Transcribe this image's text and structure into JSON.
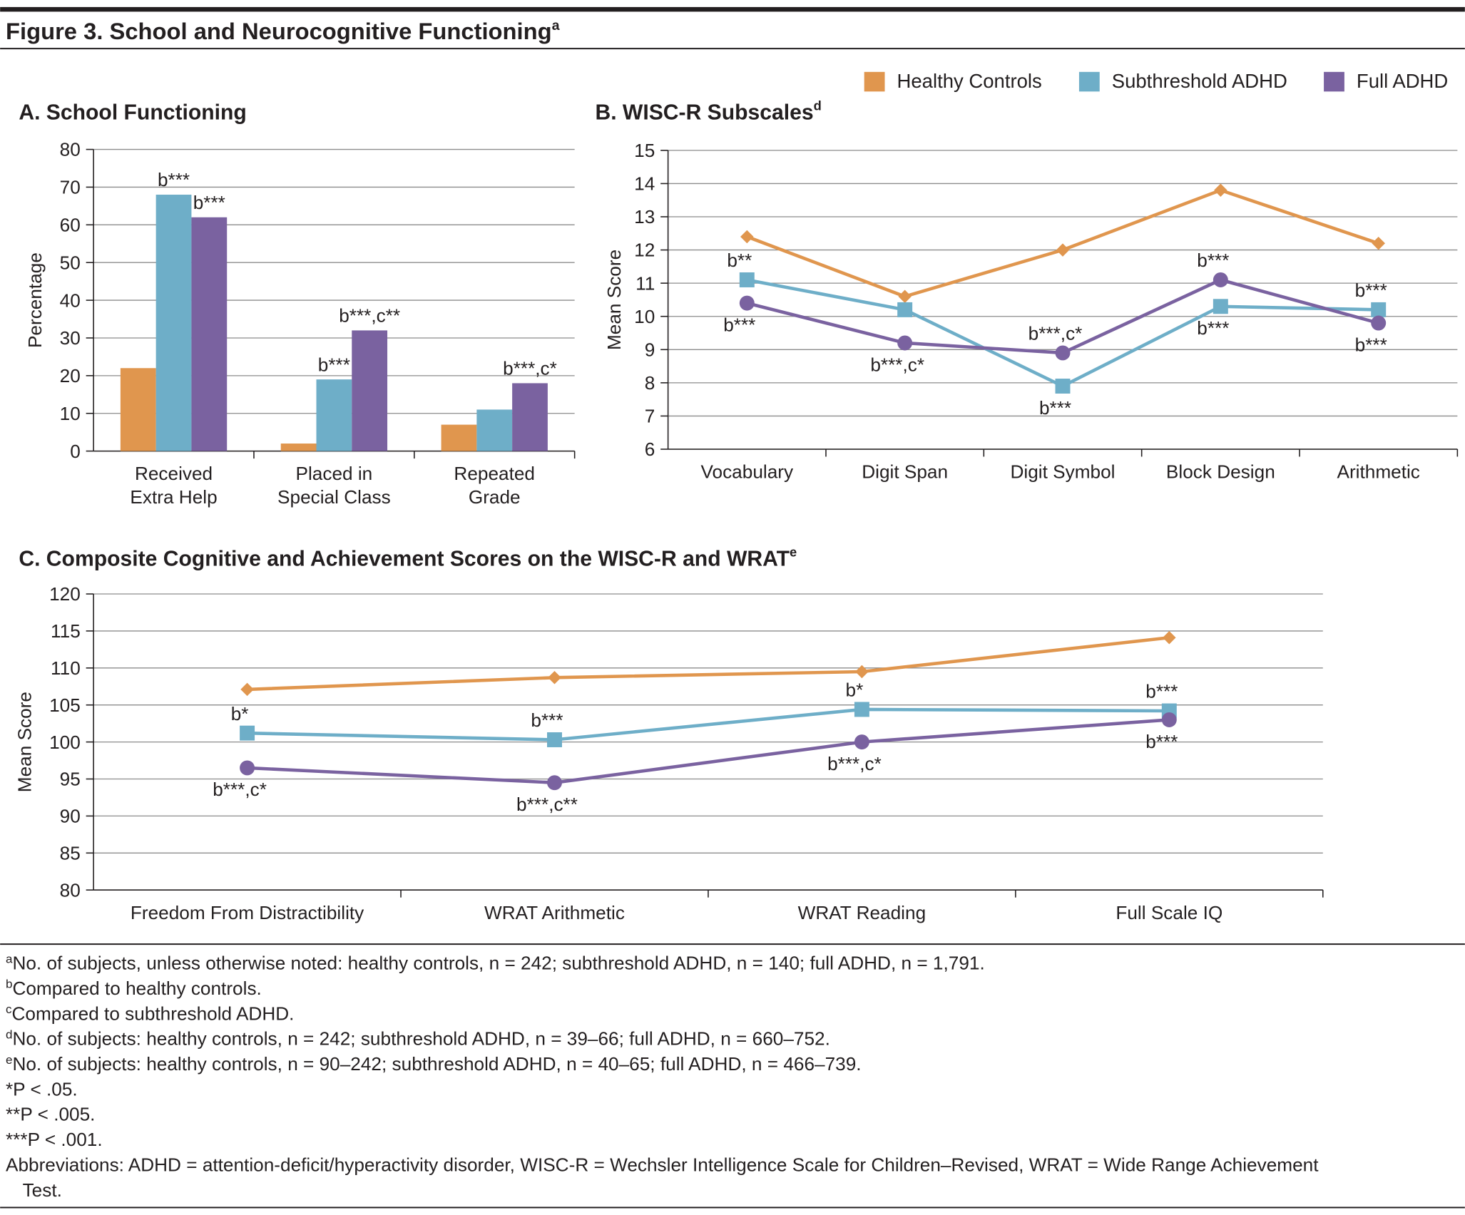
{
  "header": {
    "title": "Figure 3. School and Neurocognitive Functioning",
    "note": "a"
  },
  "chart_data": [
    {
      "type": "bar",
      "title": "A. School Functioning",
      "y_label": "Percentage",
      "categories": [
        [
          "Received",
          "Extra Help"
        ],
        [
          "Placed in",
          "Special Class"
        ],
        [
          "Repeated",
          "Grade"
        ]
      ],
      "series": [
        {
          "color": "#e0964e",
          "marker": "diamond",
          "values": [
            22,
            2,
            7
          ],
          "value_labels": [
            null,
            null,
            null
          ]
        },
        {
          "color": "#6eaec8",
          "marker": "square",
          "values": [
            68,
            19,
            11
          ],
          "value_labels": [
            "b***",
            "b***",
            null
          ]
        },
        {
          "color": "#7a62a0",
          "marker": "circle",
          "values": [
            62,
            32,
            18
          ],
          "value_labels": [
            "b***",
            "b***,c**",
            "b***,c*"
          ]
        }
      ],
      "ylim": [
        0,
        80
      ],
      "yticks": [
        0,
        10,
        20,
        30,
        40,
        50,
        60,
        70,
        80
      ],
      "grid": true
    },
    {
      "type": "line",
      "title": "B. WISC-R Subscales",
      "title_note": "d",
      "y_label": "Mean Score",
      "categories": [
        "Vocabulary",
        "Digit Span",
        "Digit Symbol",
        "Block Design",
        "Arithmetic"
      ],
      "series": [
        {
          "name": "Healthy Controls",
          "color": "#e0964e",
          "marker": "diamond",
          "values": [
            12.4,
            10.6,
            12.0,
            13.8,
            12.2
          ],
          "value_labels": [
            null,
            null,
            null,
            null,
            null
          ]
        },
        {
          "name": "Subthreshold ADHD",
          "color": "#6eaec8",
          "marker": "square",
          "values": [
            11.1,
            10.2,
            7.9,
            10.3,
            10.2
          ],
          "value_labels": [
            "b**",
            null,
            "b***",
            "b***",
            "b***"
          ]
        },
        {
          "name": "Full ADHD",
          "color": "#7a62a0",
          "marker": "circle",
          "values": [
            10.4,
            9.2,
            8.9,
            11.1,
            9.8
          ],
          "value_labels": [
            "b***",
            "b***,c*",
            "b***,c*",
            "b***",
            "b***"
          ]
        }
      ],
      "ylim": [
        6,
        15
      ],
      "yticks": [
        6,
        7,
        8,
        9,
        10,
        11,
        12,
        13,
        14,
        15
      ],
      "grid": true,
      "legend": "top-right"
    },
    {
      "type": "line",
      "title": "C. Composite Cognitive and Achievement Scores on the WISC-R and WRAT",
      "title_note": "e",
      "y_label": "Mean Score",
      "categories": [
        "Freedom From Distractibility",
        "WRAT Arithmetic",
        "WRAT Reading",
        "Full Scale IQ"
      ],
      "series": [
        {
          "color": "#e0964e",
          "marker": "diamond",
          "values": [
            107.1,
            108.7,
            109.5,
            114.1
          ],
          "value_labels": [
            null,
            null,
            null,
            null
          ]
        },
        {
          "color": "#6eaec8",
          "marker": "square",
          "values": [
            101.2,
            100.3,
            104.4,
            104.2
          ],
          "value_labels": [
            "b*",
            "b***",
            "b*",
            "b***"
          ]
        },
        {
          "color": "#7a62a0",
          "marker": "circle",
          "values": [
            96.5,
            94.5,
            100.0,
            103.0
          ],
          "value_labels": [
            "b***,c*",
            "b***,c**",
            "b***,c*",
            "b***"
          ]
        }
      ],
      "ylim": [
        80,
        120
      ],
      "yticks": [
        80,
        85,
        90,
        95,
        100,
        105,
        110,
        115,
        120
      ],
      "grid": true
    }
  ],
  "footnotes": [
    {
      "mark": "a",
      "lines": [
        "No. of subjects, unless otherwise noted: healthy controls, n = 242; subthreshold ADHD, n = 140; full ADHD, n = 1,791."
      ]
    },
    {
      "mark": "b",
      "lines": [
        "Compared to healthy controls."
      ]
    },
    {
      "mark": "c",
      "lines": [
        "Compared to subthreshold ADHD."
      ]
    },
    {
      "mark": "d",
      "lines": [
        "No. of subjects: healthy controls, n = 242; subthreshold ADHD, n = 39–66; full ADHD, n = 660–752."
      ]
    },
    {
      "mark": "e",
      "lines": [
        "No. of subjects: healthy controls, n = 90–242; subthreshold ADHD, n = 40–65; full ADHD, n = 466–739."
      ]
    },
    {
      "lines": [
        "*P < .05."
      ]
    },
    {
      "lines": [
        "**P < .005."
      ]
    },
    {
      "lines": [
        "***P < .001."
      ]
    },
    {
      "lines": [
        "Abbreviations: ADHD = attention-deficit/hyperactivity disorder, WISC-R = Wechsler Intelligence Scale for Children–Revised, WRAT = Wide Range Achievement",
        "Test."
      ]
    }
  ]
}
